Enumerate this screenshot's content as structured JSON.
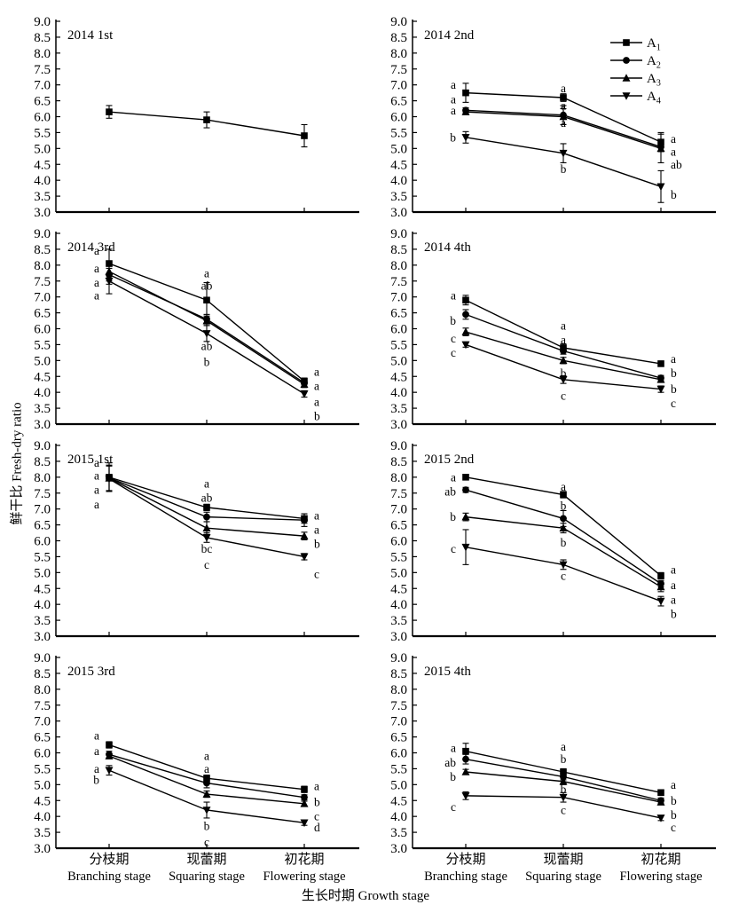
{
  "figure_title": "Fresh-dry ratio multi-panel line figure",
  "chart_data": {
    "type": "line",
    "ylabel": "鲜干比 Fresh-dry ratio",
    "xlabel": "生长时期 Growth stage",
    "ylim": [
      3.0,
      9.0
    ],
    "ytick_step": 0.5,
    "x_categories_zh": [
      "分枝期",
      "现蕾期",
      "初花期"
    ],
    "x_categories_en": [
      "Branching stage",
      "Squaring stage",
      "Flowering stage"
    ],
    "line_color": "#000000",
    "legend_position": "top-right of panel 2014 2nd",
    "legend": [
      {
        "base": "A",
        "sub": "1",
        "marker": "square"
      },
      {
        "base": "A",
        "sub": "2",
        "marker": "circle"
      },
      {
        "base": "A",
        "sub": "3",
        "marker": "triangle-up"
      },
      {
        "base": "A",
        "sub": "4",
        "marker": "triangle-down"
      }
    ],
    "panels": [
      {
        "title": "2014 1st",
        "series": [
          {
            "marker": "square",
            "values": [
              6.15,
              5.9,
              5.4
            ],
            "errors": [
              0.2,
              0.25,
              0.35
            ]
          }
        ],
        "letters": []
      },
      {
        "title": "2014 2nd",
        "series": [
          {
            "name": "A1",
            "marker": "square",
            "values": [
              6.75,
              6.6,
              5.2
            ],
            "errors": [
              0.3,
              0.12,
              0.3
            ]
          },
          {
            "name": "A2",
            "marker": "circle",
            "values": [
              6.2,
              6.05,
              5.05
            ],
            "errors": [
              0.08,
              0.3,
              0.12
            ]
          },
          {
            "name": "A3",
            "marker": "triangle-up",
            "values": [
              6.15,
              6.0,
              5.0
            ],
            "errors": [
              0.08,
              0.25,
              0.45
            ]
          },
          {
            "name": "A4",
            "marker": "triangle-down",
            "values": [
              5.35,
              4.85,
              3.8
            ],
            "errors": [
              0.18,
              0.3,
              0.5
            ]
          }
        ],
        "letters": [
          {
            "s": 0,
            "v": 7.0,
            "t": "a",
            "side": "left"
          },
          {
            "s": 0,
            "v": 6.55,
            "t": "a",
            "side": "left"
          },
          {
            "s": 0,
            "v": 6.2,
            "t": "a",
            "side": "left"
          },
          {
            "s": 0,
            "v": 5.35,
            "t": "b",
            "side": "left"
          },
          {
            "s": 1,
            "v": 6.9,
            "t": "a",
            "side": "center"
          },
          {
            "s": 1,
            "v": 6.35,
            "t": "a",
            "side": "center"
          },
          {
            "s": 1,
            "v": 5.8,
            "t": "a",
            "side": "center"
          },
          {
            "s": 1,
            "v": 4.35,
            "t": "b",
            "side": "center"
          },
          {
            "s": 2,
            "v": 5.3,
            "t": "a",
            "side": "right"
          },
          {
            "s": 2,
            "v": 4.9,
            "t": "a",
            "side": "right"
          },
          {
            "s": 2,
            "v": 4.5,
            "t": "ab",
            "side": "right"
          },
          {
            "s": 2,
            "v": 3.55,
            "t": "b",
            "side": "right"
          }
        ]
      },
      {
        "title": "2014 3rd",
        "series": [
          {
            "name": "A1",
            "marker": "square",
            "values": [
              8.05,
              6.9,
              4.35
            ],
            "errors": [
              0.45,
              0.55,
              0.1
            ]
          },
          {
            "name": "A2",
            "marker": "circle",
            "values": [
              7.7,
              6.3,
              4.3
            ],
            "errors": [
              0.3,
              0.15,
              0.1
            ]
          },
          {
            "name": "A3",
            "marker": "triangle-up",
            "values": [
              7.8,
              6.25,
              4.25
            ],
            "errors": [
              0.3,
              0.15,
              0.1
            ]
          },
          {
            "name": "A4",
            "marker": "triangle-down",
            "values": [
              7.5,
              5.85,
              3.95
            ],
            "errors": [
              0.4,
              0.25,
              0.1
            ]
          }
        ],
        "letters": [
          {
            "s": 0,
            "v": 8.45,
            "t": "a",
            "side": "left"
          },
          {
            "s": 0,
            "v": 7.9,
            "t": "a",
            "side": "left"
          },
          {
            "s": 0,
            "v": 7.45,
            "t": "a",
            "side": "left"
          },
          {
            "s": 0,
            "v": 7.05,
            "t": "a",
            "side": "left"
          },
          {
            "s": 1,
            "v": 7.75,
            "t": "a",
            "side": "center"
          },
          {
            "s": 1,
            "v": 7.35,
            "t": "ab",
            "side": "center"
          },
          {
            "s": 1,
            "v": 5.45,
            "t": "ab",
            "side": "center"
          },
          {
            "s": 1,
            "v": 4.95,
            "t": "b",
            "side": "center"
          },
          {
            "s": 2,
            "v": 4.65,
            "t": "a",
            "side": "right"
          },
          {
            "s": 2,
            "v": 4.2,
            "t": "a",
            "side": "right"
          },
          {
            "s": 2,
            "v": 3.7,
            "t": "a",
            "side": "right"
          },
          {
            "s": 2,
            "v": 3.25,
            "t": "b",
            "side": "right"
          }
        ]
      },
      {
        "title": "2014 4th",
        "series": [
          {
            "name": "A1",
            "marker": "square",
            "values": [
              6.9,
              5.4,
              4.9
            ],
            "errors": [
              0.15,
              0.12,
              0.08
            ]
          },
          {
            "name": "A2",
            "marker": "circle",
            "values": [
              6.45,
              5.3,
              4.45
            ],
            "errors": [
              0.15,
              0.1,
              0.08
            ]
          },
          {
            "name": "A3",
            "marker": "triangle-up",
            "values": [
              5.9,
              5.0,
              4.4
            ],
            "errors": [
              0.12,
              0.1,
              0.08
            ]
          },
          {
            "name": "A4",
            "marker": "triangle-down",
            "values": [
              5.5,
              4.4,
              4.1
            ],
            "errors": [
              0.08,
              0.12,
              0.1
            ]
          }
        ],
        "letters": [
          {
            "s": 0,
            "v": 7.05,
            "t": "a",
            "side": "left"
          },
          {
            "s": 0,
            "v": 6.25,
            "t": "b",
            "side": "left"
          },
          {
            "s": 0,
            "v": 5.7,
            "t": "c",
            "side": "left"
          },
          {
            "s": 0,
            "v": 5.25,
            "t": "c",
            "side": "left"
          },
          {
            "s": 1,
            "v": 6.1,
            "t": "a",
            "side": "center"
          },
          {
            "s": 1,
            "v": 5.65,
            "t": "a",
            "side": "center"
          },
          {
            "s": 1,
            "v": 4.6,
            "t": "b",
            "side": "center"
          },
          {
            "s": 1,
            "v": 3.9,
            "t": "c",
            "side": "center"
          },
          {
            "s": 2,
            "v": 5.05,
            "t": "a",
            "side": "right"
          },
          {
            "s": 2,
            "v": 4.6,
            "t": "b",
            "side": "right"
          },
          {
            "s": 2,
            "v": 4.1,
            "t": "b",
            "side": "right"
          },
          {
            "s": 2,
            "v": 3.65,
            "t": "c",
            "side": "right"
          }
        ]
      },
      {
        "title": "2015 1st",
        "series": [
          {
            "name": "A1",
            "marker": "square",
            "values": [
              8.0,
              7.05,
              6.7
            ],
            "errors": [
              0.45,
              0.1,
              0.15
            ]
          },
          {
            "name": "A2",
            "marker": "circle",
            "values": [
              7.98,
              6.75,
              6.65
            ],
            "errors": [
              0.4,
              0.15,
              0.2
            ]
          },
          {
            "name": "A3",
            "marker": "triangle-up",
            "values": [
              7.97,
              6.4,
              6.15
            ],
            "errors": [
              0.4,
              0.2,
              0.12
            ]
          },
          {
            "name": "A4",
            "marker": "triangle-down",
            "values": [
              7.95,
              6.1,
              5.5
            ],
            "errors": [
              0.4,
              0.15,
              0.1
            ]
          }
        ],
        "letters": [
          {
            "s": 0,
            "v": 8.45,
            "t": "a",
            "side": "left"
          },
          {
            "s": 0,
            "v": 8.05,
            "t": "a",
            "side": "left"
          },
          {
            "s": 0,
            "v": 7.6,
            "t": "a",
            "side": "left"
          },
          {
            "s": 0,
            "v": 7.15,
            "t": "a",
            "side": "left"
          },
          {
            "s": 1,
            "v": 7.8,
            "t": "a",
            "side": "center"
          },
          {
            "s": 1,
            "v": 7.35,
            "t": "ab",
            "side": "center"
          },
          {
            "s": 1,
            "v": 5.75,
            "t": "bc",
            "side": "center"
          },
          {
            "s": 1,
            "v": 5.25,
            "t": "c",
            "side": "center"
          },
          {
            "s": 2,
            "v": 6.8,
            "t": "a",
            "side": "right"
          },
          {
            "s": 2,
            "v": 6.35,
            "t": "a",
            "side": "right"
          },
          {
            "s": 2,
            "v": 5.9,
            "t": "b",
            "side": "right"
          },
          {
            "s": 2,
            "v": 4.95,
            "t": "c",
            "side": "right"
          }
        ]
      },
      {
        "title": "2015 2nd",
        "series": [
          {
            "name": "A1",
            "marker": "square",
            "values": [
              8.0,
              7.45,
              4.9
            ],
            "errors": [
              0.08,
              0.1,
              0.1
            ]
          },
          {
            "name": "A2",
            "marker": "circle",
            "values": [
              7.6,
              6.7,
              4.65
            ],
            "errors": [
              0.08,
              0.25,
              0.1
            ]
          },
          {
            "name": "A3",
            "marker": "triangle-up",
            "values": [
              6.75,
              6.4,
              4.55
            ],
            "errors": [
              0.12,
              0.15,
              0.15
            ]
          },
          {
            "name": "A4",
            "marker": "triangle-down",
            "values": [
              5.8,
              5.25,
              4.1
            ],
            "errors": [
              0.55,
              0.15,
              0.15
            ]
          }
        ],
        "letters": [
          {
            "s": 0,
            "v": 8.0,
            "t": "a",
            "side": "left"
          },
          {
            "s": 0,
            "v": 7.55,
            "t": "ab",
            "side": "left"
          },
          {
            "s": 0,
            "v": 6.75,
            "t": "b",
            "side": "left"
          },
          {
            "s": 0,
            "v": 5.75,
            "t": "c",
            "side": "left"
          },
          {
            "s": 1,
            "v": 7.7,
            "t": "a",
            "side": "center"
          },
          {
            "s": 1,
            "v": 7.1,
            "t": "b",
            "side": "center"
          },
          {
            "s": 1,
            "v": 5.95,
            "t": "b",
            "side": "center"
          },
          {
            "s": 1,
            "v": 4.9,
            "t": "c",
            "side": "center"
          },
          {
            "s": 2,
            "v": 5.1,
            "t": "a",
            "side": "right"
          },
          {
            "s": 2,
            "v": 4.6,
            "t": "a",
            "side": "right"
          },
          {
            "s": 2,
            "v": 4.15,
            "t": "a",
            "side": "right"
          },
          {
            "s": 2,
            "v": 3.7,
            "t": "b",
            "side": "right"
          }
        ]
      },
      {
        "title": "2015 3rd",
        "series": [
          {
            "name": "A1",
            "marker": "square",
            "values": [
              6.25,
              5.2,
              4.85
            ],
            "errors": [
              0.1,
              0.1,
              0.1
            ]
          },
          {
            "name": "A2",
            "marker": "circle",
            "values": [
              5.95,
              5.05,
              4.6
            ],
            "errors": [
              0.1,
              0.15,
              0.08
            ]
          },
          {
            "name": "A3",
            "marker": "triangle-up",
            "values": [
              5.9,
              4.7,
              4.4
            ],
            "errors": [
              0.08,
              0.1,
              0.08
            ]
          },
          {
            "name": "A4",
            "marker": "triangle-down",
            "values": [
              5.45,
              4.2,
              3.8
            ],
            "errors": [
              0.15,
              0.25,
              0.08
            ]
          }
        ],
        "letters": [
          {
            "s": 0,
            "v": 6.55,
            "t": "a",
            "side": "left"
          },
          {
            "s": 0,
            "v": 6.05,
            "t": "a",
            "side": "left"
          },
          {
            "s": 0,
            "v": 5.5,
            "t": "a",
            "side": "left"
          },
          {
            "s": 0,
            "v": 5.15,
            "t": "b",
            "side": "left"
          },
          {
            "s": 1,
            "v": 5.9,
            "t": "a",
            "side": "center"
          },
          {
            "s": 1,
            "v": 5.5,
            "t": "a",
            "side": "center"
          },
          {
            "s": 1,
            "v": 3.7,
            "t": "b",
            "side": "center"
          },
          {
            "s": 1,
            "v": 3.2,
            "t": "c",
            "side": "center"
          },
          {
            "s": 2,
            "v": 4.95,
            "t": "a",
            "side": "right"
          },
          {
            "s": 2,
            "v": 4.45,
            "t": "b",
            "side": "right"
          },
          {
            "s": 2,
            "v": 4.0,
            "t": "c",
            "side": "right"
          },
          {
            "s": 2,
            "v": 3.65,
            "t": "d",
            "side": "right"
          }
        ]
      },
      {
        "title": "2015 4th",
        "series": [
          {
            "name": "A1",
            "marker": "square",
            "values": [
              6.05,
              5.4,
              4.75
            ],
            "errors": [
              0.25,
              0.1,
              0.08
            ]
          },
          {
            "name": "A2",
            "marker": "circle",
            "values": [
              5.8,
              5.25,
              4.5
            ],
            "errors": [
              0.15,
              0.1,
              0.08
            ]
          },
          {
            "name": "A3",
            "marker": "triangle-up",
            "values": [
              5.4,
              5.1,
              4.45
            ],
            "errors": [
              0.08,
              0.1,
              0.08
            ]
          },
          {
            "name": "A4",
            "marker": "triangle-down",
            "values": [
              4.65,
              4.6,
              3.95
            ],
            "errors": [
              0.12,
              0.15,
              0.08
            ]
          }
        ],
        "letters": [
          {
            "s": 0,
            "v": 6.15,
            "t": "a",
            "side": "left"
          },
          {
            "s": 0,
            "v": 5.7,
            "t": "ab",
            "side": "left"
          },
          {
            "s": 0,
            "v": 5.25,
            "t": "b",
            "side": "left"
          },
          {
            "s": 0,
            "v": 4.3,
            "t": "c",
            "side": "left"
          },
          {
            "s": 1,
            "v": 6.2,
            "t": "a",
            "side": "center"
          },
          {
            "s": 1,
            "v": 5.8,
            "t": "b",
            "side": "center"
          },
          {
            "s": 1,
            "v": 4.85,
            "t": "b",
            "side": "center"
          },
          {
            "s": 1,
            "v": 4.2,
            "t": "c",
            "side": "center"
          },
          {
            "s": 2,
            "v": 5.0,
            "t": "a",
            "side": "right"
          },
          {
            "s": 2,
            "v": 4.5,
            "t": "b",
            "side": "right"
          },
          {
            "s": 2,
            "v": 4.05,
            "t": "b",
            "side": "right"
          },
          {
            "s": 2,
            "v": 3.65,
            "t": "c",
            "side": "right"
          }
        ]
      }
    ]
  }
}
